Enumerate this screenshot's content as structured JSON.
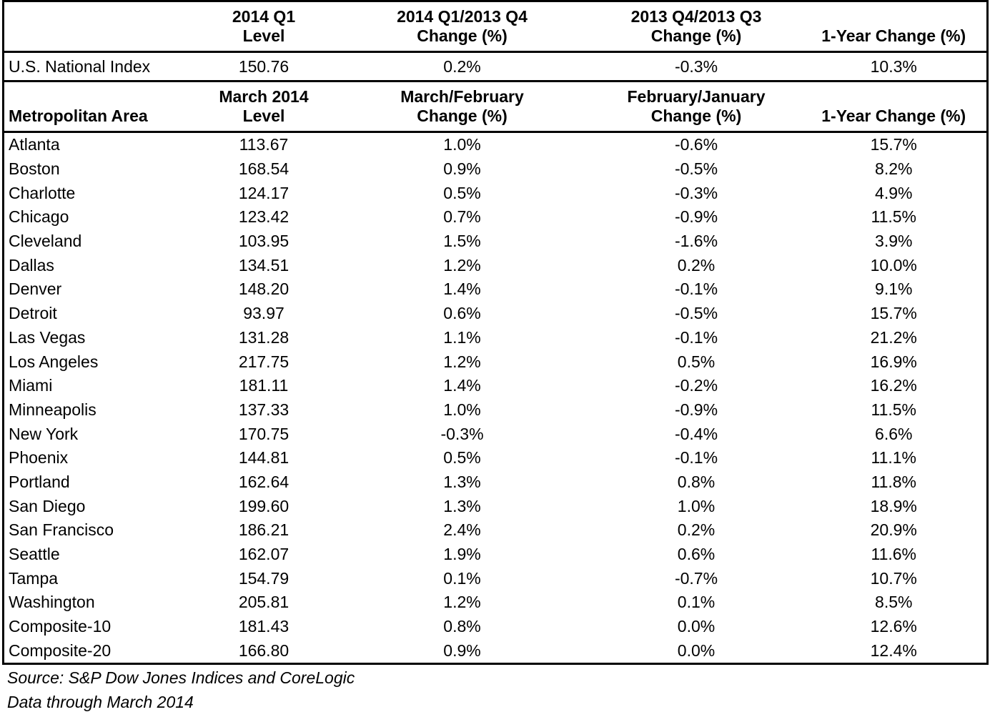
{
  "national_header": {
    "row1": [
      "",
      "2014 Q1",
      "2014 Q1/2013 Q4",
      "2013 Q4/2013 Q3",
      ""
    ],
    "row2": [
      "",
      "Level",
      "Change (%)",
      "Change (%)",
      "1-Year Change (%)"
    ]
  },
  "national_row": [
    "U.S. National Index",
    "150.76",
    "0.2%",
    "-0.3%",
    "10.3%"
  ],
  "metro_header": {
    "row1": [
      "",
      "March 2014",
      "March/February",
      "February/January",
      ""
    ],
    "row2": [
      "Metropolitan Area",
      "Level",
      "Change (%)",
      "Change (%)",
      "1-Year Change (%)"
    ]
  },
  "metro_rows": [
    [
      "Atlanta",
      "113.67",
      "1.0%",
      "-0.6%",
      "15.7%"
    ],
    [
      "Boston",
      "168.54",
      "0.9%",
      "-0.5%",
      "8.2%"
    ],
    [
      "Charlotte",
      "124.17",
      "0.5%",
      "-0.3%",
      "4.9%"
    ],
    [
      "Chicago",
      "123.42",
      "0.7%",
      "-0.9%",
      "11.5%"
    ],
    [
      "Cleveland",
      "103.95",
      "1.5%",
      "-1.6%",
      "3.9%"
    ],
    [
      "Dallas",
      "134.51",
      "1.2%",
      "0.2%",
      "10.0%"
    ],
    [
      "Denver",
      "148.20",
      "1.4%",
      "-0.1%",
      "9.1%"
    ],
    [
      "Detroit",
      "93.97",
      "0.6%",
      "-0.5%",
      "15.7%"
    ],
    [
      "Las Vegas",
      "131.28",
      "1.1%",
      "-0.1%",
      "21.2%"
    ],
    [
      "Los Angeles",
      "217.75",
      "1.2%",
      "0.5%",
      "16.9%"
    ],
    [
      "Miami",
      "181.11",
      "1.4%",
      "-0.2%",
      "16.2%"
    ],
    [
      "Minneapolis",
      "137.33",
      "1.0%",
      "-0.9%",
      "11.5%"
    ],
    [
      "New York",
      "170.75",
      "-0.3%",
      "-0.4%",
      "6.6%"
    ],
    [
      "Phoenix",
      "144.81",
      "0.5%",
      "-0.1%",
      "11.1%"
    ],
    [
      "Portland",
      "162.64",
      "1.3%",
      "0.8%",
      "11.8%"
    ],
    [
      "San Diego",
      "199.60",
      "1.3%",
      "1.0%",
      "18.9%"
    ],
    [
      "San Francisco",
      "186.21",
      "2.4%",
      "0.2%",
      "20.9%"
    ],
    [
      "Seattle",
      "162.07",
      "1.9%",
      "0.6%",
      "11.6%"
    ],
    [
      "Tampa",
      "154.79",
      "0.1%",
      "-0.7%",
      "10.7%"
    ],
    [
      "Washington",
      "205.81",
      "1.2%",
      "0.1%",
      "8.5%"
    ],
    [
      "Composite-10",
      "181.43",
      "0.8%",
      "0.0%",
      "12.6%"
    ],
    [
      "Composite-20",
      "166.80",
      "0.9%",
      "0.0%",
      "12.4%"
    ]
  ],
  "footer": {
    "source": "Source: S&P Dow Jones Indices and CoreLogic",
    "data_through": "Data through March 2014"
  }
}
